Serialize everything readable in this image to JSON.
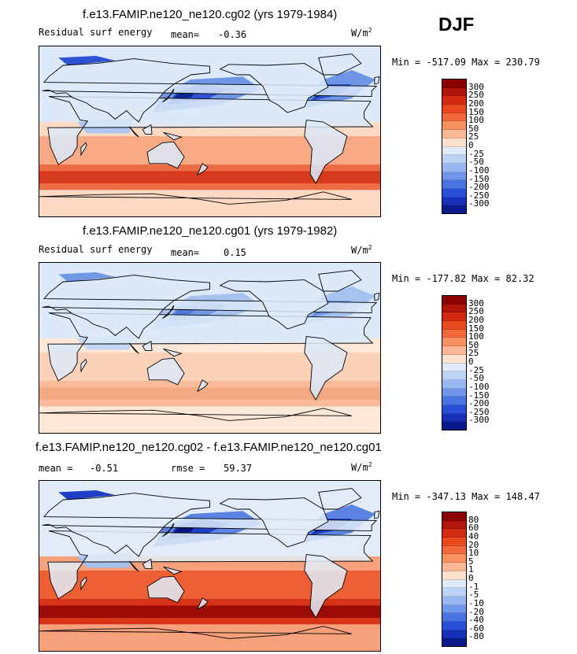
{
  "season": "DJF",
  "units": "W/m",
  "units_exp": "2",
  "panels": [
    {
      "title": "f.e13.FAMIP.ne120_ne120.cg02 (yrs 1979-1984)",
      "variable": "Residual surf energy",
      "mean_label": "mean=",
      "mean_value": "-0.36",
      "minmax": "Min = -517.09 Max = 230.79",
      "colorbar_labels": [
        "300",
        "250",
        "200",
        "150",
        "100",
        "50",
        "25",
        "0",
        "-25",
        "-50",
        "-100",
        "-150",
        "-200",
        "-250",
        "-300"
      ],
      "colorbar_colors": [
        "#8b0000",
        "#b0160c",
        "#d22b12",
        "#e84a1e",
        "#f26a3b",
        "#f7915f",
        "#fbb896",
        "#fde1cc",
        "#dfeafa",
        "#bcd3f6",
        "#98b8f1",
        "#6f96ea",
        "#4a73e2",
        "#2a4fd6",
        "#1630b8",
        "#0a1a8a"
      ],
      "map_colors": {
        "cold3": "#0c2696",
        "cold2": "#2d52d3",
        "cold1": "#6f96e6",
        "cool": "#aec7f1",
        "neutral": "#dbe9f8",
        "warm1": "#fcd9c2",
        "warm2": "#f8aa84",
        "warm3": "#ec6c44",
        "hot": "#d6391b"
      }
    },
    {
      "title": "f.e13.FAMIP.ne120_ne120.cg01 (yrs 1979-1982)",
      "variable": "Residual surf energy",
      "mean_label": "mean=",
      "mean_value": "0.15",
      "minmax": "Min = -177.82 Max =  82.32",
      "colorbar_labels": [
        "300",
        "250",
        "200",
        "150",
        "100",
        "50",
        "25",
        "0",
        "-25",
        "-50",
        "-100",
        "-150",
        "-200",
        "-250",
        "-300"
      ],
      "colorbar_colors": [
        "#8b0000",
        "#b0160c",
        "#d22b12",
        "#e84a1e",
        "#f26a3b",
        "#f7915f",
        "#fbb896",
        "#fde1cc",
        "#dfeafa",
        "#bcd3f6",
        "#98b8f1",
        "#6f96ea",
        "#4a73e2",
        "#2a4fd6",
        "#1630b8",
        "#0a1a8a"
      ],
      "map_colors": {
        "cold3": "#4e78dd",
        "cold2": "#7298e4",
        "cold1": "#a7c2ef",
        "cool": "#c4d7f4",
        "neutral": "#dbe9f8",
        "warm1": "#fde7d6",
        "warm2": "#fbd1b8",
        "warm3": "#f8bb9a",
        "hot": "#f5a983"
      }
    },
    {
      "title": "f.e13.FAMIP.ne120_ne120.cg02 - f.e13.FAMIP.ne120_ne120.cg01",
      "mean_label": "mean =",
      "mean_value": "-0.51",
      "rmse_label": "rmse =",
      "rmse_value": "59.37",
      "minmax": "Min = -347.13 Max = 148.47",
      "colorbar_labels": [
        "80",
        "60",
        "40",
        "20",
        "10",
        "5",
        "1",
        "0",
        "-1",
        "-5",
        "-10",
        "-20",
        "-40",
        "-60",
        "-80"
      ],
      "colorbar_colors": [
        "#8b0000",
        "#b0160c",
        "#d22b12",
        "#e84a1e",
        "#f26a3b",
        "#f7915f",
        "#fbb896",
        "#fde1cc",
        "#dfeafa",
        "#bcd3f6",
        "#98b8f1",
        "#6f96ea",
        "#4a73e2",
        "#2a4fd6",
        "#1630b8",
        "#0a1a8a"
      ],
      "map_colors": {
        "cold3": "#06157e",
        "cold2": "#1f3fc6",
        "cold1": "#5b84e2",
        "cool": "#a6c0ee",
        "neutral": "#e2ecf8",
        "warm1": "#f6a07c",
        "warm2": "#ec5f35",
        "warm3": "#d63318",
        "hot": "#9c0c06"
      }
    }
  ]
}
